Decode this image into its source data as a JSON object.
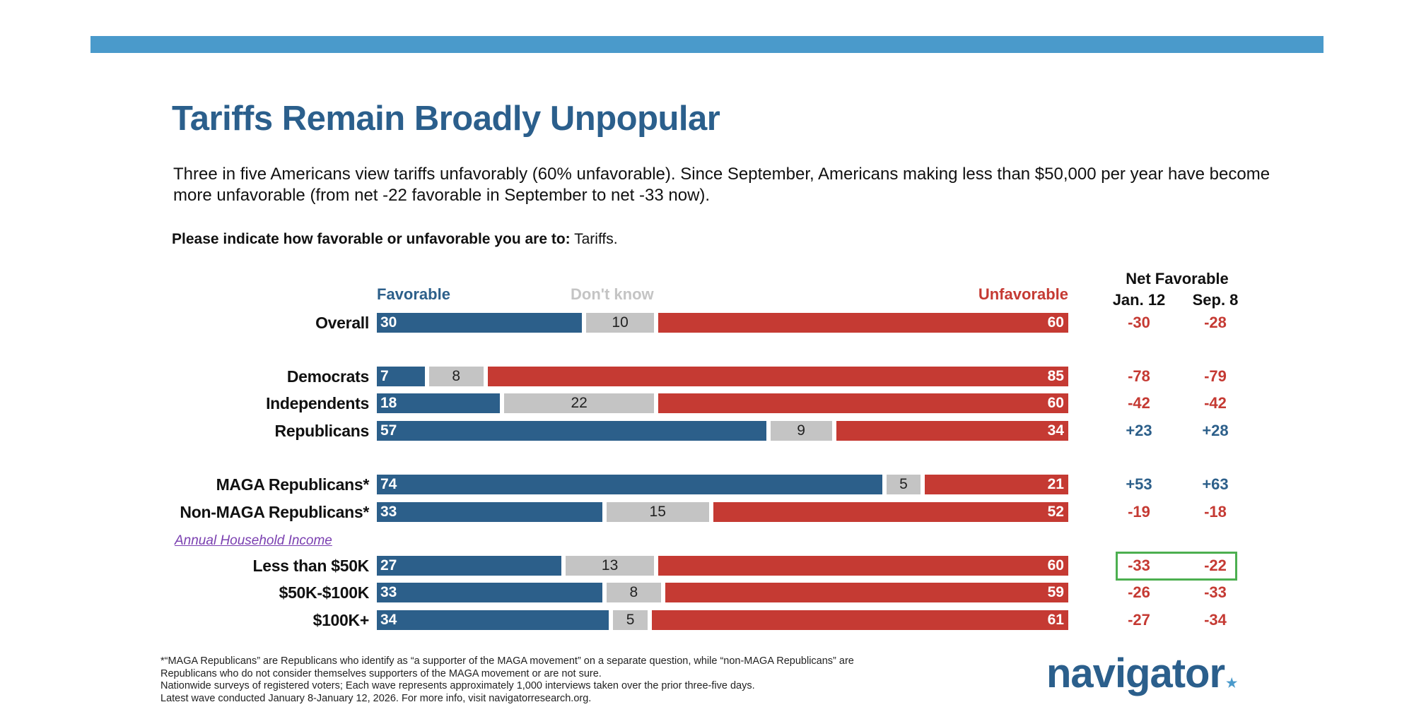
{
  "header": {
    "title": "Tariffs Remain Broadly Unpopular",
    "subtitle": "Three in five Americans view tariffs unfavorably (60% unfavorable). Since September, Americans making less than $50,000 per year have become more unfavorable (from net -22 favorable in September to net -33 now).",
    "question_bold": "Please indicate how favorable or unfavorable you are to:",
    "question_rest": " Tariffs."
  },
  "colors": {
    "favorable": "#2c5f8a",
    "dont_know": "#c4c4c4",
    "unfavorable": "#c53a33",
    "title": "#2b5f8c",
    "accent_bar": "#4a9acb",
    "highlight_box": "#4caf50",
    "group_label": "#7a3fb0"
  },
  "chart_data": {
    "type": "bar",
    "orientation": "horizontal-stacked",
    "title": "Please indicate how favorable or unfavorable you are to: Tariffs.",
    "legend": [
      "Favorable",
      "Don't know",
      "Unfavorable"
    ],
    "legend_placement": "top",
    "net_header": "Net Favorable",
    "net_columns": [
      "Jan. 12",
      "Sep. 8"
    ],
    "group_label": "Annual Household Income",
    "categories": [
      "Overall",
      "Democrats",
      "Independents",
      "Republicans",
      "MAGA Republicans*",
      "Non-MAGA Republicans*",
      "Less than $50K",
      "$50K-$100K",
      "$100K+"
    ],
    "series": [
      {
        "name": "Favorable",
        "values": [
          30,
          7,
          18,
          57,
          74,
          33,
          27,
          33,
          34
        ]
      },
      {
        "name": "Don't know",
        "values": [
          10,
          8,
          22,
          9,
          5,
          15,
          13,
          8,
          5
        ]
      },
      {
        "name": "Unfavorable",
        "values": [
          60,
          85,
          60,
          34,
          21,
          52,
          60,
          59,
          61
        ]
      }
    ],
    "net_favorable": {
      "Jan. 12": [
        "-30",
        "-78",
        "-42",
        "+23",
        "+53",
        "-19",
        "-33",
        "-26",
        "-27"
      ],
      "Sep. 8": [
        "-28",
        "-79",
        "-42",
        "+28",
        "+63",
        "-18",
        "-22",
        "-33",
        "-34"
      ]
    },
    "highlighted_row": "Less than $50K",
    "xlim": [
      0,
      100
    ]
  },
  "footnote": [
    "*“MAGA Republicans” are Republicans who identify as “a supporter of the MAGA movement” on a separate question, while “non-MAGA Republicans” are",
    "Republicans who do not consider themselves supporters of the MAGA movement or are not sure.",
    "Nationwide surveys of registered voters; Each wave represents approximately 1,000 interviews taken over the prior three-five days.",
    "Latest wave conducted January 8-January 12, 2026. For more info, visit navigatorresearch.org."
  ],
  "logo": {
    "text": "navigator",
    "mark": "."
  }
}
